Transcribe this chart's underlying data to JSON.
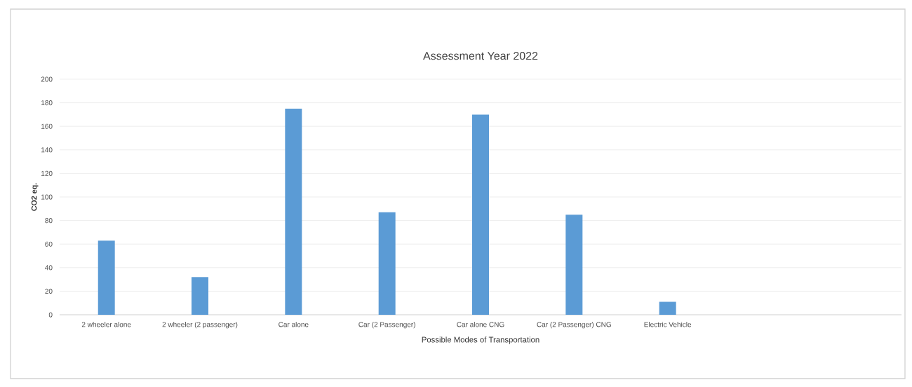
{
  "chart_data": {
    "type": "bar",
    "title": "Assessment Year 2022",
    "xlabel": "Possible Modes of Transportation",
    "ylabel": "CO2 eq.",
    "categories": [
      "2 wheeler alone",
      "2 wheeler (2 passenger)",
      "Car alone",
      "Car (2 Passenger)",
      "Car alone CNG",
      "Car (2 Passenger) CNG",
      "Electric Vehicle",
      null,
      null
    ],
    "values": [
      63,
      32,
      175,
      87,
      170,
      85,
      11,
      null,
      null
    ],
    "color": "#5b9bd5",
    "ylim": [
      0,
      200
    ],
    "yticks": [
      0,
      20,
      40,
      60,
      80,
      100,
      120,
      140,
      160,
      180,
      200
    ],
    "grid": "y"
  }
}
